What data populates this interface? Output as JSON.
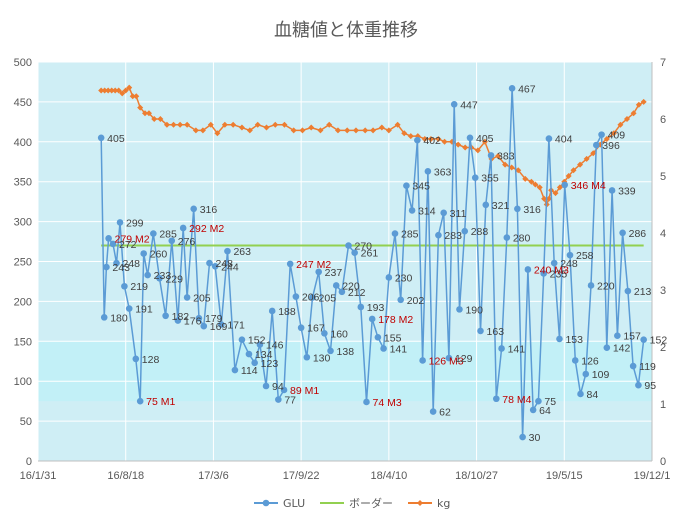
{
  "chart_data": {
    "type": "line",
    "title": "血糖値と体重推移",
    "x_axis": {
      "type": "date",
      "ticks": [
        "16/1/31",
        "16/8/18",
        "17/3/6",
        "17/9/22",
        "18/4/10",
        "18/10/27",
        "19/5/15",
        "19/12/1"
      ],
      "range": [
        "16/1/31",
        "19/12/1"
      ]
    },
    "y_left": {
      "range": [
        0,
        500
      ],
      "ticks": [
        "0",
        "50",
        "100",
        "150",
        "200",
        "250",
        "300",
        "350",
        "400",
        "450",
        "500"
      ]
    },
    "y_right": {
      "range": [
        0,
        7
      ],
      "ticks": [
        "0",
        "1",
        "2",
        "3",
        "4",
        "5",
        "6",
        "7"
      ]
    },
    "bands": [
      {
        "from": 75,
        "to": 150,
        "color": "#c2f0f7"
      }
    ],
    "plot_background": "#cfeef5",
    "grid": true,
    "legend": {
      "position": "bottom",
      "entries": [
        "GLU",
        "ボーダー",
        "kg"
      ]
    },
    "series": [
      {
        "name": "GLU",
        "axis": "left",
        "color": "#5b9bd5",
        "points": [
          {
            "x": "16/6/23",
            "y": 405,
            "label": "405"
          },
          {
            "x": "16/6/30",
            "y": 180,
            "label": "180"
          },
          {
            "x": "16/7/5",
            "y": 243,
            "label": "243"
          },
          {
            "x": "16/7/10",
            "y": 279,
            "label": "279 M2",
            "label_color": "#c00000"
          },
          {
            "x": "16/7/20",
            "y": 272,
            "label": "272"
          },
          {
            "x": "16/7/28",
            "y": 248,
            "label": "248"
          },
          {
            "x": "16/8/5",
            "y": 299,
            "label": "299"
          },
          {
            "x": "16/8/15",
            "y": 219,
            "label": "219"
          },
          {
            "x": "16/8/26",
            "y": 191,
            "label": "191"
          },
          {
            "x": "16/9/10",
            "y": 128,
            "label": "128"
          },
          {
            "x": "16/9/20",
            "y": 75,
            "label": "75 M1",
            "label_color": "#c00000"
          },
          {
            "x": "16/9/28",
            "y": 260,
            "label": "260"
          },
          {
            "x": "16/10/7",
            "y": 233,
            "label": "233"
          },
          {
            "x": "16/10/20",
            "y": 285,
            "label": "285"
          },
          {
            "x": "16/11/3",
            "y": 229,
            "label": "229"
          },
          {
            "x": "16/11/17",
            "y": 182,
            "label": "182"
          },
          {
            "x": "16/12/1",
            "y": 276,
            "label": "276"
          },
          {
            "x": "16/12/15",
            "y": 176,
            "label": "176"
          },
          {
            "x": "16/12/27",
            "y": 292,
            "label": "292 M2",
            "label_color": "#c00000"
          },
          {
            "x": "17/1/5",
            "y": 205,
            "label": "205"
          },
          {
            "x": "17/1/20",
            "y": 316,
            "label": "316"
          },
          {
            "x": "17/2/1",
            "y": 179,
            "label": "179"
          },
          {
            "x": "17/2/12",
            "y": 169,
            "label": "169"
          },
          {
            "x": "17/2/25",
            "y": 248,
            "label": "248"
          },
          {
            "x": "17/3/10",
            "y": 244,
            "label": "244"
          },
          {
            "x": "17/3/24",
            "y": 171,
            "label": "171"
          },
          {
            "x": "17/4/7",
            "y": 263,
            "label": "263"
          },
          {
            "x": "17/4/24",
            "y": 114,
            "label": "114"
          },
          {
            "x": "17/5/10",
            "y": 152,
            "label": "152"
          },
          {
            "x": "17/5/26",
            "y": 134,
            "label": "134"
          },
          {
            "x": "17/6/8",
            "y": 123,
            "label": "123"
          },
          {
            "x": "17/6/20",
            "y": 146,
            "label": "146"
          },
          {
            "x": "17/7/4",
            "y": 94,
            "label": "94"
          },
          {
            "x": "17/7/18",
            "y": 188,
            "label": "188"
          },
          {
            "x": "17/8/1",
            "y": 77,
            "label": "77"
          },
          {
            "x": "17/8/14",
            "y": 89,
            "label": "89 M1",
            "label_color": "#c00000"
          },
          {
            "x": "17/8/28",
            "y": 247,
            "label": "247 M2",
            "label_color": "#c00000"
          },
          {
            "x": "17/9/10",
            "y": 206,
            "label": "206"
          },
          {
            "x": "17/9/22",
            "y": 167,
            "label": "167"
          },
          {
            "x": "17/10/5",
            "y": 130,
            "label": "130"
          },
          {
            "x": "17/10/18",
            "y": 205,
            "label": "205"
          },
          {
            "x": "17/11/1",
            "y": 237,
            "label": "237"
          },
          {
            "x": "17/11/14",
            "y": 160,
            "label": "160"
          },
          {
            "x": "17/11/28",
            "y": 138,
            "label": "138"
          },
          {
            "x": "17/12/11",
            "y": 220,
            "label": "220"
          },
          {
            "x": "17/12/24",
            "y": 212,
            "label": "212"
          },
          {
            "x": "18/1/8",
            "y": 270,
            "label": "270"
          },
          {
            "x": "18/1/22",
            "y": 261,
            "label": "261"
          },
          {
            "x": "18/2/5",
            "y": 193,
            "label": "193"
          },
          {
            "x": "18/2/18",
            "y": 74,
            "label": "74 M3",
            "label_color": "#c00000"
          },
          {
            "x": "18/3/3",
            "y": 178,
            "label": "178 M2",
            "label_color": "#c00000"
          },
          {
            "x": "18/3/16",
            "y": 155,
            "label": "155"
          },
          {
            "x": "18/3/29",
            "y": 141,
            "label": "141"
          },
          {
            "x": "18/4/10",
            "y": 230,
            "label": "230"
          },
          {
            "x": "18/4/24",
            "y": 285,
            "label": "285"
          },
          {
            "x": "18/5/7",
            "y": 202,
            "label": "202"
          },
          {
            "x": "18/5/20",
            "y": 345,
            "label": "345"
          },
          {
            "x": "18/6/2",
            "y": 314,
            "label": "314"
          },
          {
            "x": "18/6/14",
            "y": 402,
            "label": "402"
          },
          {
            "x": "18/6/26",
            "y": 126,
            "label": "126 M3",
            "label_color": "#c00000"
          },
          {
            "x": "18/7/8",
            "y": 363,
            "label": "363"
          },
          {
            "x": "18/7/20",
            "y": 62,
            "label": "62"
          },
          {
            "x": "18/8/1",
            "y": 283,
            "label": "283"
          },
          {
            "x": "18/8/13",
            "y": 311,
            "label": "311"
          },
          {
            "x": "18/8/25",
            "y": 129,
            "label": "129"
          },
          {
            "x": "18/9/6",
            "y": 447,
            "label": "447"
          },
          {
            "x": "18/9/18",
            "y": 190,
            "label": "190"
          },
          {
            "x": "18/9/30",
            "y": 288,
            "label": "288"
          },
          {
            "x": "18/10/12",
            "y": 405,
            "label": "405"
          },
          {
            "x": "18/10/24",
            "y": 355,
            "label": "355"
          },
          {
            "x": "18/11/5",
            "y": 163,
            "label": "163"
          },
          {
            "x": "18/11/17",
            "y": 321,
            "label": "321"
          },
          {
            "x": "18/11/29",
            "y": 383,
            "label": "383"
          },
          {
            "x": "18/12/11",
            "y": 78,
            "label": "78 M4",
            "label_color": "#c00000"
          },
          {
            "x": "18/12/23",
            "y": 141,
            "label": "141"
          },
          {
            "x": "19/1/4",
            "y": 280,
            "label": "280"
          },
          {
            "x": "19/1/16",
            "y": 467,
            "label": "467"
          },
          {
            "x": "19/1/28",
            "y": 316,
            "label": "316"
          },
          {
            "x": "19/2/9",
            "y": 30,
            "label": "30"
          },
          {
            "x": "19/2/21",
            "y": 240,
            "label": "240 M3",
            "label_color": "#c00000"
          },
          {
            "x": "19/3/5",
            "y": 64,
            "label": "64"
          },
          {
            "x": "19/3/17",
            "y": 75,
            "label": "75"
          },
          {
            "x": "19/3/29",
            "y": 235,
            "label": "235"
          },
          {
            "x": "19/4/10",
            "y": 404,
            "label": "404"
          },
          {
            "x": "19/4/22",
            "y": 248,
            "label": "248"
          },
          {
            "x": "19/5/4",
            "y": 153,
            "label": "153"
          },
          {
            "x": "19/5/16",
            "y": 346,
            "label": "346 M4",
            "label_color": "#c00000"
          },
          {
            "x": "19/5/28",
            "y": 258,
            "label": "258"
          },
          {
            "x": "19/6/9",
            "y": 126,
            "label": "126"
          },
          {
            "x": "19/6/21",
            "y": 84,
            "label": "84"
          },
          {
            "x": "19/7/3",
            "y": 109,
            "label": "109"
          },
          {
            "x": "19/7/15",
            "y": 220,
            "label": "220"
          },
          {
            "x": "19/7/27",
            "y": 396,
            "label": "396"
          },
          {
            "x": "19/8/8",
            "y": 409,
            "label": "409"
          },
          {
            "x": "19/8/20",
            "y": 142,
            "label": "142"
          },
          {
            "x": "19/9/1",
            "y": 339,
            "label": "339"
          },
          {
            "x": "19/9/13",
            "y": 157,
            "label": "157"
          },
          {
            "x": "19/9/25",
            "y": 286,
            "label": "286"
          },
          {
            "x": "19/10/7",
            "y": 213,
            "label": "213"
          },
          {
            "x": "19/10/19",
            "y": 119,
            "label": "119"
          },
          {
            "x": "19/10/31",
            "y": 95,
            "label": "95"
          },
          {
            "x": "19/11/12",
            "y": 152,
            "label": "152"
          }
        ]
      },
      {
        "name": "ボーダー",
        "axis": "left",
        "color": "#92d050",
        "points": [
          {
            "x": "16/6/23",
            "y": 270
          },
          {
            "x": "19/11/12",
            "y": 270
          }
        ]
      },
      {
        "name": "kg",
        "axis": "right",
        "color": "#ed7d31",
        "points": [
          {
            "x": "16/6/23",
            "y": 6.5
          },
          {
            "x": "16/7/1",
            "y": 6.5
          },
          {
            "x": "16/7/9",
            "y": 6.5
          },
          {
            "x": "16/7/17",
            "y": 6.5
          },
          {
            "x": "16/7/25",
            "y": 6.5
          },
          {
            "x": "16/8/2",
            "y": 6.5
          },
          {
            "x": "16/8/10",
            "y": 6.45
          },
          {
            "x": "16/8/18",
            "y": 6.5
          },
          {
            "x": "16/8/26",
            "y": 6.55
          },
          {
            "x": "16/9/3",
            "y": 6.4
          },
          {
            "x": "16/9/11",
            "y": 6.4
          },
          {
            "x": "16/9/20",
            "y": 6.2
          },
          {
            "x": "16/10/1",
            "y": 6.1
          },
          {
            "x": "16/10/10",
            "y": 6.1
          },
          {
            "x": "16/10/22",
            "y": 6.0
          },
          {
            "x": "16/11/5",
            "y": 6.0
          },
          {
            "x": "16/11/20",
            "y": 5.9
          },
          {
            "x": "16/12/5",
            "y": 5.9
          },
          {
            "x": "16/12/20",
            "y": 5.9
          },
          {
            "x": "17/1/5",
            "y": 5.9
          },
          {
            "x": "17/1/25",
            "y": 5.8
          },
          {
            "x": "17/2/10",
            "y": 5.8
          },
          {
            "x": "17/2/28",
            "y": 5.9
          },
          {
            "x": "17/3/15",
            "y": 5.75
          },
          {
            "x": "17/4/1",
            "y": 5.9
          },
          {
            "x": "17/4/20",
            "y": 5.9
          },
          {
            "x": "17/5/10",
            "y": 5.85
          },
          {
            "x": "17/5/28",
            "y": 5.8
          },
          {
            "x": "17/6/15",
            "y": 5.9
          },
          {
            "x": "17/7/5",
            "y": 5.85
          },
          {
            "x": "17/7/25",
            "y": 5.9
          },
          {
            "x": "17/8/15",
            "y": 5.9
          },
          {
            "x": "17/9/5",
            "y": 5.8
          },
          {
            "x": "17/9/25",
            "y": 5.8
          },
          {
            "x": "17/10/15",
            "y": 5.85
          },
          {
            "x": "17/11/5",
            "y": 5.8
          },
          {
            "x": "17/11/25",
            "y": 5.9
          },
          {
            "x": "17/12/15",
            "y": 5.8
          },
          {
            "x": "18/1/5",
            "y": 5.8
          },
          {
            "x": "18/1/25",
            "y": 5.8
          },
          {
            "x": "18/2/15",
            "y": 5.8
          },
          {
            "x": "18/3/5",
            "y": 5.8
          },
          {
            "x": "18/3/25",
            "y": 5.85
          },
          {
            "x": "18/4/10",
            "y": 5.8
          },
          {
            "x": "18/4/30",
            "y": 5.9
          },
          {
            "x": "18/5/15",
            "y": 5.75
          },
          {
            "x": "18/5/30",
            "y": 5.7
          },
          {
            "x": "18/6/15",
            "y": 5.7
          },
          {
            "x": "18/7/1",
            "y": 5.65
          },
          {
            "x": "18/7/15",
            "y": 5.65
          },
          {
            "x": "18/8/1",
            "y": 5.65
          },
          {
            "x": "18/8/15",
            "y": 5.6
          },
          {
            "x": "18/9/1",
            "y": 5.6
          },
          {
            "x": "18/9/15",
            "y": 5.55
          },
          {
            "x": "18/10/1",
            "y": 5.5
          },
          {
            "x": "18/10/15",
            "y": 5.5
          },
          {
            "x": "18/10/30",
            "y": 5.45
          },
          {
            "x": "18/11/15",
            "y": 5.6
          },
          {
            "x": "18/11/30",
            "y": 5.3
          },
          {
            "x": "18/12/15",
            "y": 5.35
          },
          {
            "x": "18/12/31",
            "y": 5.2
          },
          {
            "x": "19/1/15",
            "y": 5.15
          },
          {
            "x": "19/1/30",
            "y": 5.1
          },
          {
            "x": "19/2/15",
            "y": 4.95
          },
          {
            "x": "19/3/1",
            "y": 4.9
          },
          {
            "x": "19/3/10",
            "y": 4.85
          },
          {
            "x": "19/3/20",
            "y": 4.8
          },
          {
            "x": "19/3/30",
            "y": 4.6
          },
          {
            "x": "19/4/5",
            "y": 4.5
          },
          {
            "x": "19/4/10",
            "y": 4.6
          },
          {
            "x": "19/4/15",
            "y": 4.75
          },
          {
            "x": "19/4/25",
            "y": 4.7
          },
          {
            "x": "19/5/5",
            "y": 4.8
          },
          {
            "x": "19/5/15",
            "y": 4.9
          },
          {
            "x": "19/5/25",
            "y": 5.0
          },
          {
            "x": "19/6/5",
            "y": 5.1
          },
          {
            "x": "19/6/20",
            "y": 5.2
          },
          {
            "x": "19/7/5",
            "y": 5.3
          },
          {
            "x": "19/7/20",
            "y": 5.4
          },
          {
            "x": "19/8/5",
            "y": 5.55
          },
          {
            "x": "19/8/20",
            "y": 5.65
          },
          {
            "x": "19/9/5",
            "y": 5.75
          },
          {
            "x": "19/9/20",
            "y": 5.9
          },
          {
            "x": "19/10/5",
            "y": 6.0
          },
          {
            "x": "19/10/20",
            "y": 6.1
          },
          {
            "x": "19/11/1",
            "y": 6.25
          },
          {
            "x": "19/11/12",
            "y": 6.3
          }
        ]
      }
    ]
  }
}
